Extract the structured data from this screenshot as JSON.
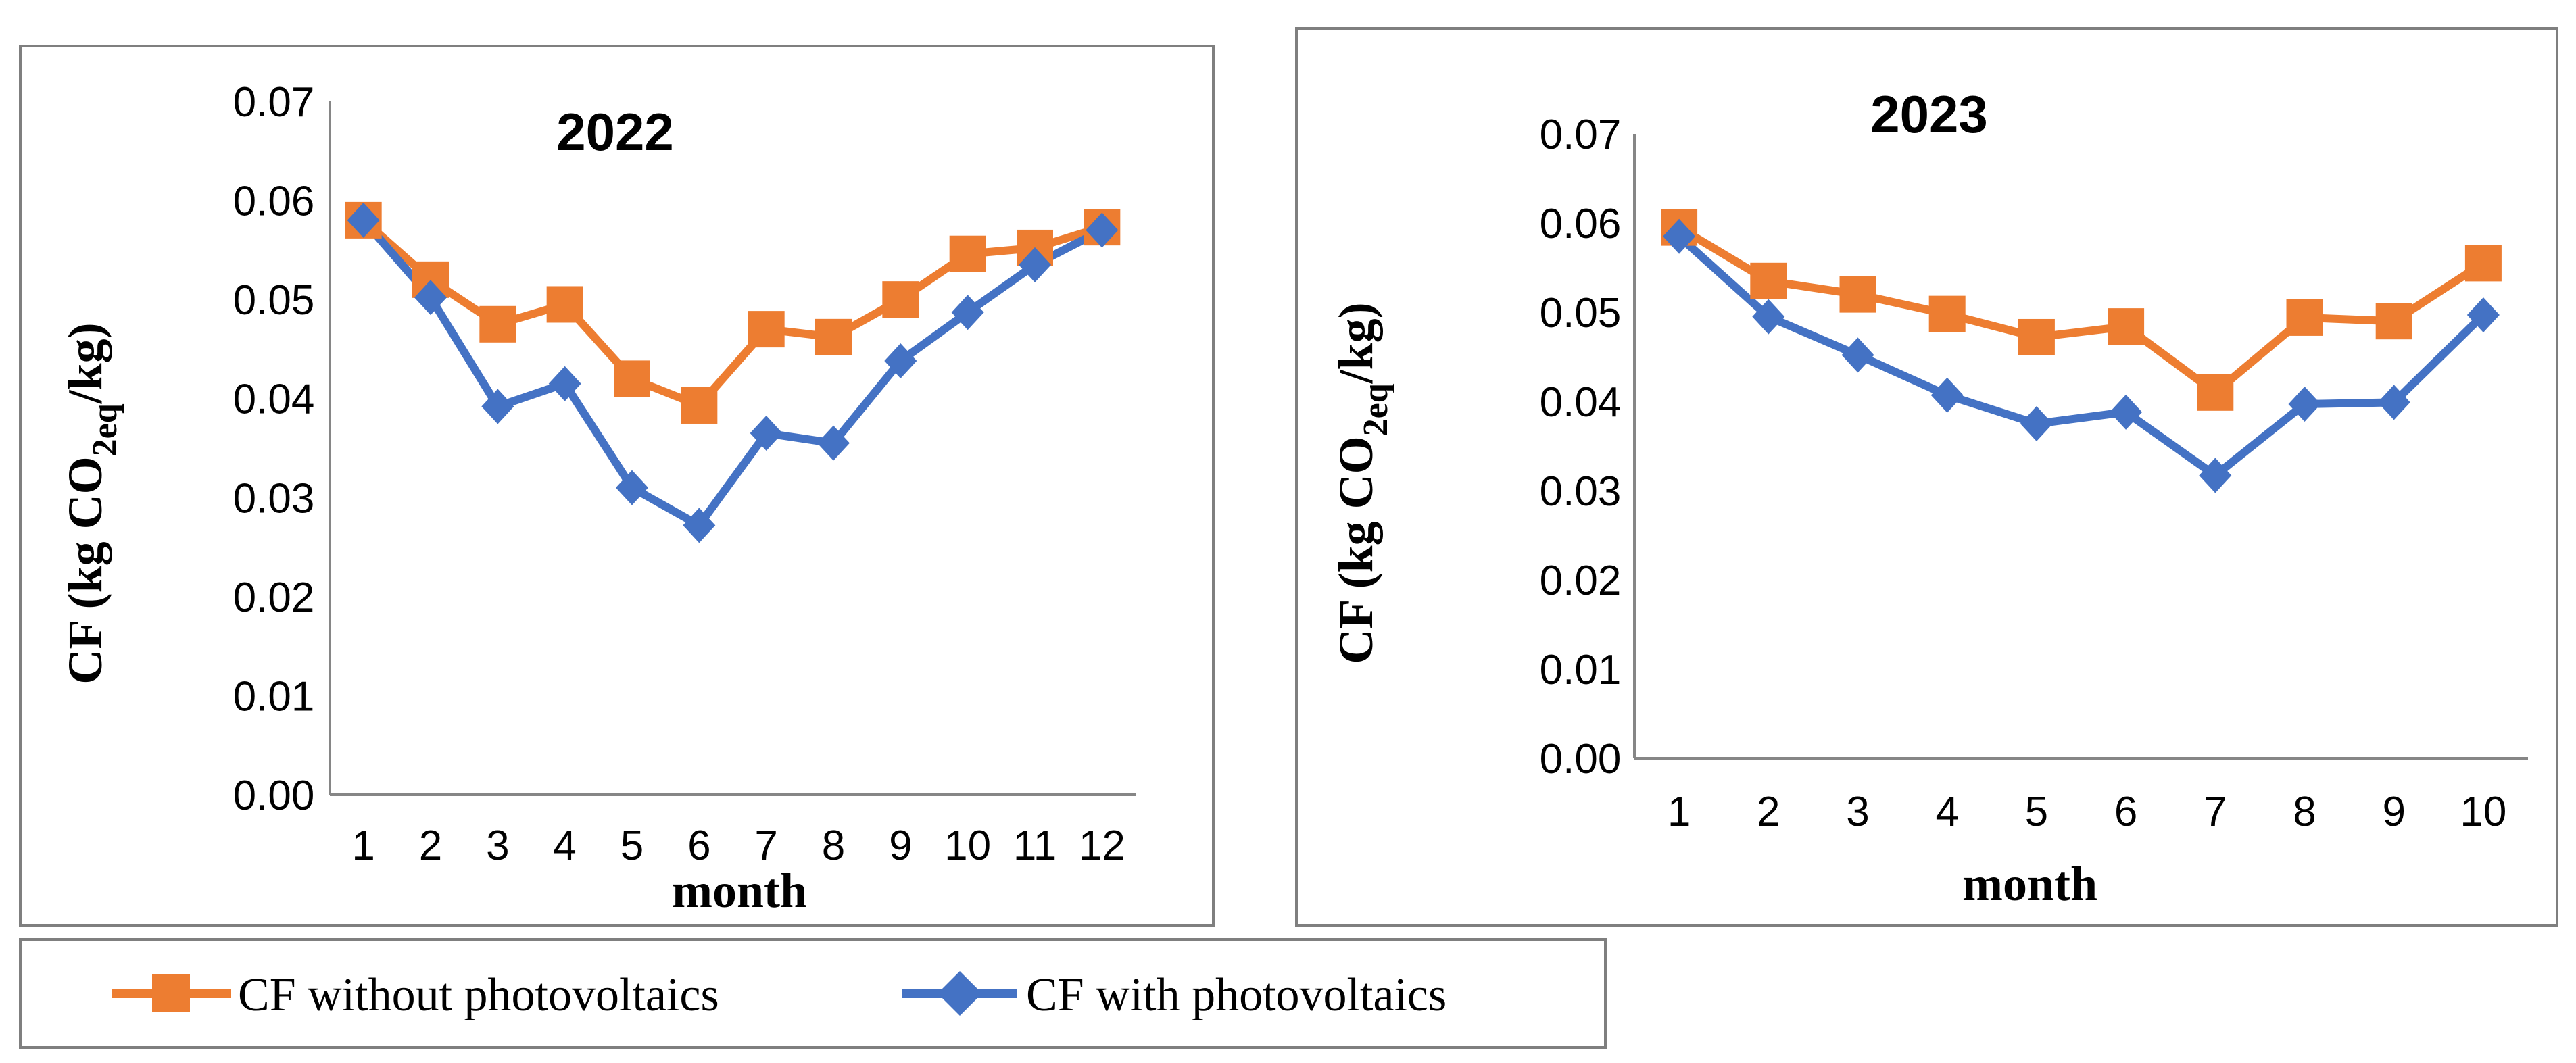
{
  "colors": {
    "without": "#ED7D31",
    "with": "#4472C4",
    "axis": "#868686",
    "frame": "#7F7F7F"
  },
  "legend": {
    "without_label": "CF without photovoltaics",
    "with_label": "CF with photovoltaics"
  },
  "chart_data": [
    {
      "type": "line",
      "title": "2022",
      "xlabel": "month",
      "ylabel": {
        "main": "CF (kg CO",
        "sub": "2eq",
        "tail": "/kg)"
      },
      "categories": [
        "1",
        "2",
        "3",
        "4",
        "5",
        "6",
        "7",
        "8",
        "9",
        "10",
        "11",
        "12"
      ],
      "ylim": [
        0,
        0.07
      ],
      "yticks": [
        "0.00",
        "0.01",
        "0.02",
        "0.03",
        "0.04",
        "0.05",
        "0.06",
        "0.07"
      ],
      "series": [
        {
          "name": "CF without photovoltaics",
          "values": [
            0.058,
            0.052,
            0.0475,
            0.0495,
            0.042,
            0.0393,
            0.047,
            0.0462,
            0.05,
            0.0546,
            0.0552,
            0.0573
          ]
        },
        {
          "name": "CF with photovoltaics",
          "values": [
            0.058,
            0.0502,
            0.0392,
            0.0415,
            0.031,
            0.0272,
            0.0365,
            0.0355,
            0.0438,
            0.0487,
            0.0535,
            0.057
          ]
        }
      ]
    },
    {
      "type": "line",
      "title": "2023",
      "xlabel": "month",
      "ylabel": {
        "main": "CF (kg CO",
        "sub": "2eq",
        "tail": "/kg)"
      },
      "categories": [
        "1",
        "2",
        "3",
        "4",
        "5",
        "6",
        "7",
        "8",
        "9",
        "10"
      ],
      "ylim": [
        0,
        0.07
      ],
      "yticks": [
        "0.00",
        "0.01",
        "0.02",
        "0.03",
        "0.04",
        "0.05",
        "0.06",
        "0.07"
      ],
      "series": [
        {
          "name": "CF without photovoltaics",
          "values": [
            0.0595,
            0.0535,
            0.052,
            0.0498,
            0.0472,
            0.0484,
            0.041,
            0.0494,
            0.049,
            0.0555
          ]
        },
        {
          "name": "CF with photovoltaics",
          "values": [
            0.0585,
            0.0495,
            0.0452,
            0.0407,
            0.0375,
            0.0388,
            0.0317,
            0.0397,
            0.0399,
            0.0497
          ]
        }
      ]
    }
  ]
}
